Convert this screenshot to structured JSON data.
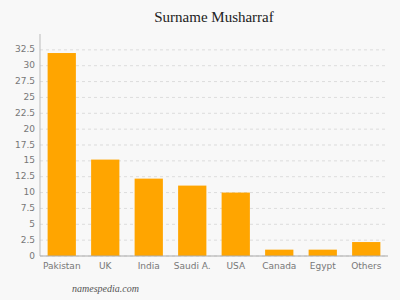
{
  "chart_data": {
    "type": "bar",
    "title": "Surname Musharraf",
    "categories": [
      "Pakistan",
      "UK",
      "India",
      "Saudi A.",
      "USA",
      "Canada",
      "Egypt",
      "Others"
    ],
    "values": [
      32.0,
      15.2,
      12.2,
      11.1,
      10.0,
      1.0,
      1.0,
      2.2
    ],
    "color": "#FFA500",
    "ylim": [
      0,
      35
    ],
    "yticks": [
      0,
      2.5,
      5,
      7.5,
      10,
      12.5,
      15,
      17.5,
      20,
      22.5,
      25,
      27.5,
      30,
      32.5
    ],
    "grid": true,
    "footer": "namespedia.com"
  }
}
